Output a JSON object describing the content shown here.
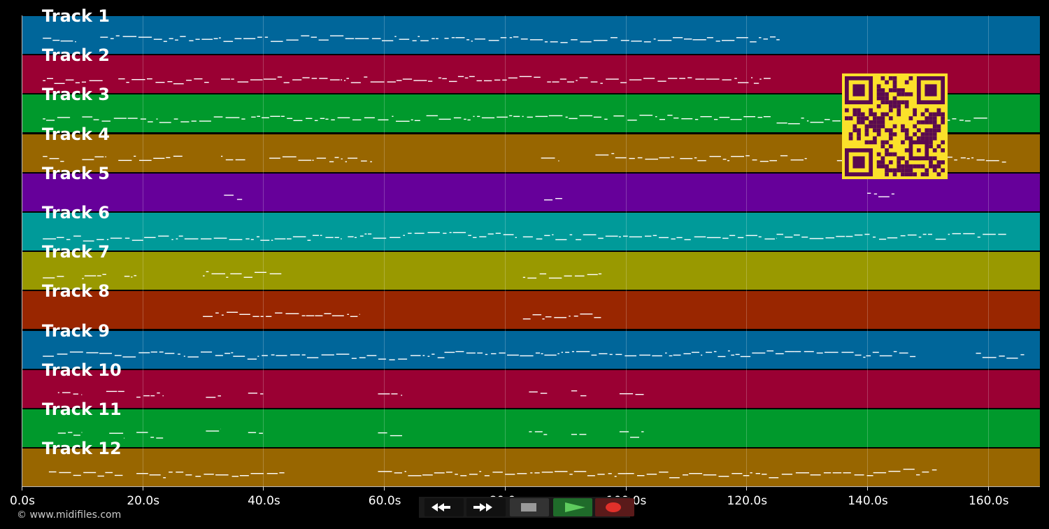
{
  "tracks": [
    {
      "label": "Track 1",
      "color": "#00669a"
    },
    {
      "label": "Track 2",
      "color": "#9a0033"
    },
    {
      "label": "Track 3",
      "color": "#00992c"
    },
    {
      "label": "Track 4",
      "color": "#986600"
    },
    {
      "label": "Track 5",
      "color": "#66009a"
    },
    {
      "label": "Track 6",
      "color": "#009a99"
    },
    {
      "label": "Track 7",
      "color": "#999900"
    },
    {
      "label": "Track 8",
      "color": "#992600"
    },
    {
      "label": "Track 9",
      "color": "#00669a"
    },
    {
      "label": "Track 10",
      "color": "#9a0033"
    },
    {
      "label": "Track 11",
      "color": "#00992c"
    },
    {
      "label": "Track 12",
      "color": "#986600"
    }
  ],
  "time_axis": {
    "min_seconds": 0,
    "max_seconds": 168.6,
    "ticks": [
      {
        "seconds": 0,
        "label": "0.0s"
      },
      {
        "seconds": 20,
        "label": "20.0s"
      },
      {
        "seconds": 40,
        "label": "40.0s"
      },
      {
        "seconds": 60,
        "label": "60.0s"
      },
      {
        "seconds": 80,
        "label": "80.0s"
      },
      {
        "seconds": 100,
        "label": "100.0s"
      },
      {
        "seconds": 120,
        "label": "120.0s"
      },
      {
        "seconds": 140,
        "label": "140.0s"
      },
      {
        "seconds": 160,
        "label": "160.0s"
      }
    ]
  },
  "note_activity": [
    {
      "track": 1,
      "spans": [
        [
          3.5,
          9
        ],
        [
          13,
          69
        ],
        [
          70,
          125.5
        ]
      ]
    },
    {
      "track": 2,
      "spans": [
        [
          3.5,
          13.5
        ],
        [
          16,
          31
        ],
        [
          33,
          68
        ],
        [
          69,
          86
        ],
        [
          87,
          124
        ]
      ]
    },
    {
      "track": 3,
      "spans": [
        [
          3.5,
          8
        ],
        [
          10,
          37
        ],
        [
          38,
          66
        ],
        [
          67,
          97
        ],
        [
          98,
          124
        ],
        [
          125,
          160
        ]
      ]
    },
    {
      "track": 4,
      "spans": [
        [
          3.5,
          7
        ],
        [
          10,
          14
        ],
        [
          16,
          27
        ],
        [
          33,
          37
        ],
        [
          41,
          58
        ],
        [
          86,
          89
        ],
        [
          95,
          108
        ],
        [
          109,
          130
        ],
        [
          135,
          163
        ]
      ]
    },
    {
      "track": 5,
      "spans": [
        [
          33.5,
          36.5
        ],
        [
          86.5,
          89.5
        ],
        [
          140,
          144.5
        ]
      ]
    },
    {
      "track": 6,
      "spans": [
        [
          3.5,
          53
        ],
        [
          54,
          82
        ],
        [
          83,
          125
        ],
        [
          125,
          163
        ]
      ]
    },
    {
      "track": 7,
      "spans": [
        [
          3.5,
          7
        ],
        [
          10,
          14
        ],
        [
          17,
          19
        ],
        [
          30,
          43
        ],
        [
          83,
          96
        ]
      ]
    },
    {
      "track": 8,
      "spans": [
        [
          30,
          56
        ],
        [
          83,
          96
        ]
      ]
    },
    {
      "track": 9,
      "spans": [
        [
          3.5,
          35
        ],
        [
          35,
          70
        ],
        [
          70,
          128
        ],
        [
          128,
          148
        ],
        [
          158,
          166
        ]
      ]
    },
    {
      "track": 10,
      "spans": [
        [
          6,
          10
        ],
        [
          14,
          17
        ],
        [
          19,
          23.5
        ],
        [
          30.5,
          33
        ],
        [
          37.5,
          40
        ],
        [
          59,
          63
        ],
        [
          84,
          87
        ],
        [
          91,
          93.5
        ],
        [
          99,
          103
        ]
      ]
    },
    {
      "track": 11,
      "spans": [
        [
          6,
          10
        ],
        [
          14.5,
          17
        ],
        [
          19,
          23.5
        ],
        [
          30.5,
          33
        ],
        [
          37.5,
          40
        ],
        [
          59,
          63
        ],
        [
          84,
          87
        ],
        [
          91,
          93.5
        ],
        [
          99,
          103
        ]
      ]
    },
    {
      "track": 12,
      "spans": [
        [
          4.5,
          17
        ],
        [
          19,
          43.5
        ],
        [
          59,
          100
        ],
        [
          100,
          141
        ],
        [
          141,
          151.5
        ]
      ]
    }
  ],
  "controls": {
    "rewind_icon": "rewind-icon",
    "fast_forward_icon": "fast-forward-icon",
    "stop_icon": "stop-icon",
    "play_icon": "play-icon",
    "record_icon": "record-icon"
  },
  "qr_code": {
    "color": "#fbe12a",
    "module_color": "#5a0a4f"
  },
  "footer": {
    "copyright": "© www.midifiles.com"
  }
}
